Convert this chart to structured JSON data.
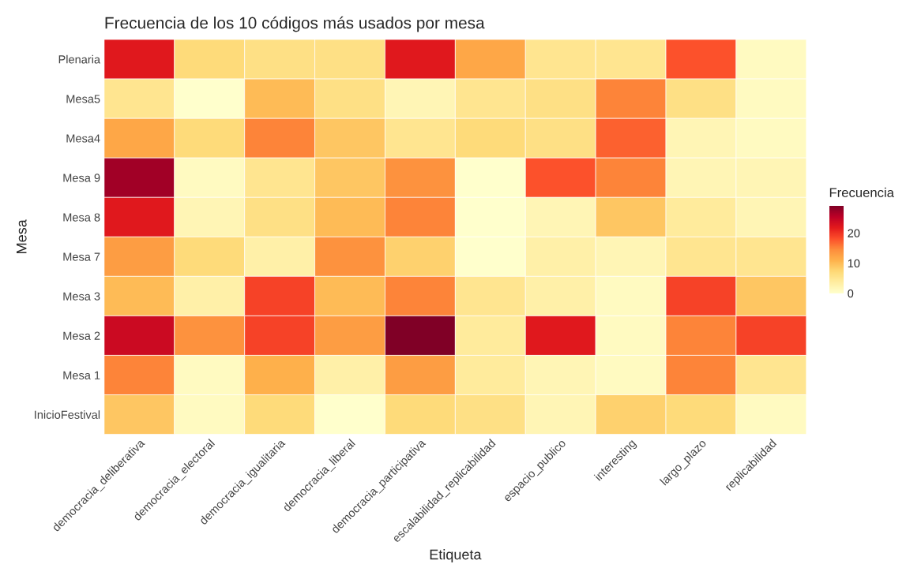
{
  "chart_data": {
    "type": "heatmap",
    "title": "Frecuencia de los 10 códigos más usados por mesa",
    "xlabel": "Etiqueta",
    "ylabel": "Mesa",
    "clabel": "Frecuencia",
    "categories": [
      "democracia_deliberativa",
      "democracia_electoral",
      "democracia_igualitaria",
      "democracia_liberal",
      "democracia_participativa",
      "escalabilidad_replicabilidad",
      "espacio_publico",
      "interesting",
      "largo_plazo",
      "replicabilidad"
    ],
    "y_categories": [
      "Plenaria",
      "Mesa5",
      "Mesa4",
      "Mesa 9",
      "Mesa 8",
      "Mesa 7",
      "Mesa 3",
      "Mesa 2",
      "Mesa 1",
      "InicioFestival"
    ],
    "cells": [
      [
        22,
        7,
        6,
        6,
        22,
        12,
        5,
        5,
        18,
        1
      ],
      [
        5,
        0,
        10,
        6,
        2,
        5,
        6,
        15,
        6,
        1
      ],
      [
        12,
        7,
        15,
        9,
        5,
        7,
        6,
        17,
        2,
        1
      ],
      [
        27,
        1,
        5,
        9,
        14,
        0,
        18,
        15,
        2,
        2
      ],
      [
        22,
        2,
        6,
        10,
        15,
        0,
        2,
        9,
        4,
        2
      ],
      [
        13,
        7,
        3,
        14,
        8,
        0,
        3,
        2,
        5,
        5
      ],
      [
        10,
        3,
        19,
        10,
        15,
        5,
        3,
        1,
        19,
        9
      ],
      [
        24,
        14,
        19,
        13,
        29,
        4,
        22,
        1,
        15,
        19
      ],
      [
        15,
        1,
        11,
        3,
        13,
        4,
        2,
        1,
        15,
        5
      ],
      [
        9,
        1,
        7,
        0,
        7,
        6,
        2,
        8,
        7,
        1
      ]
    ],
    "clim": [
      0,
      29
    ],
    "cticks": [
      0,
      10,
      20
    ]
  }
}
